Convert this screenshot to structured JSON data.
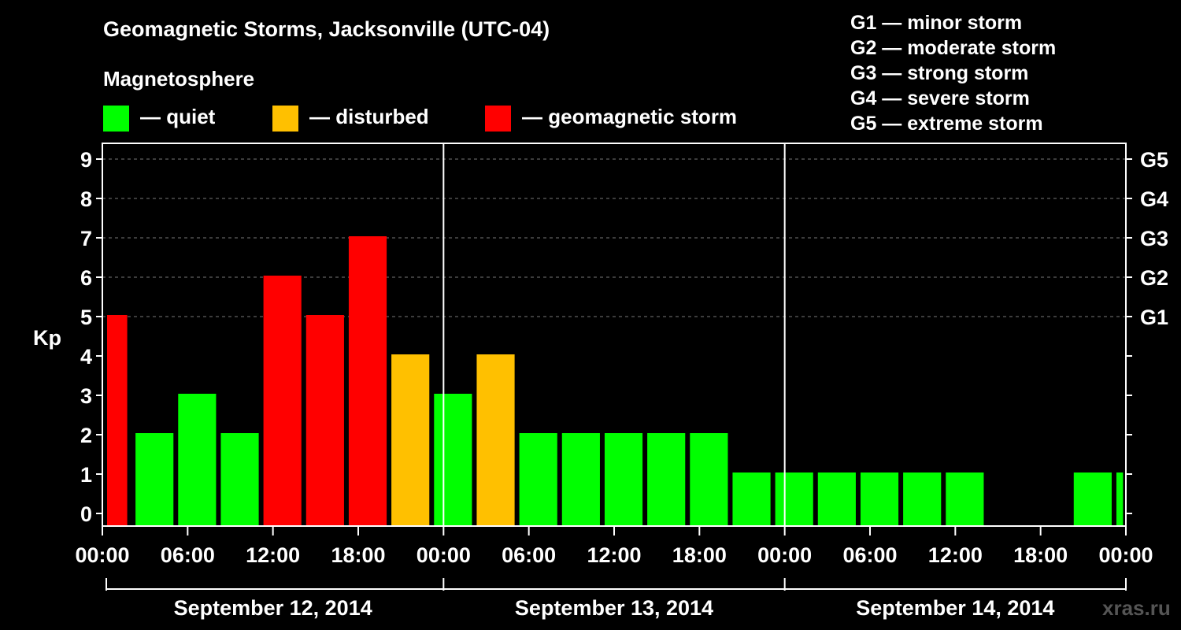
{
  "title": "Geomagnetic Storms, Jacksonville (UTC-04)",
  "magnetosphere": {
    "title": "Magnetosphere",
    "legend": [
      {
        "label": "— quiet",
        "color": "#00ff00"
      },
      {
        "label": "— disturbed",
        "color": "#ffc000"
      },
      {
        "label": "— geomagnetic storm",
        "color": "#ff0000"
      }
    ]
  },
  "g_legend": [
    "G1 — minor storm",
    "G2 — moderate storm",
    "G3 — strong storm",
    "G4 — severe storm",
    "G5 — extreme storm"
  ],
  "watermark": "xras.ru",
  "chart_data": {
    "type": "bar",
    "ylabel": "Kp",
    "ylim": [
      0,
      9
    ],
    "yticks": [
      "0",
      "1",
      "2",
      "3",
      "4",
      "5",
      "6",
      "7",
      "8",
      "9"
    ],
    "right_ticks": [
      {
        "kp": 5,
        "label": "G1"
      },
      {
        "kp": 6,
        "label": "G2"
      },
      {
        "kp": 7,
        "label": "G3"
      },
      {
        "kp": 8,
        "label": "G4"
      },
      {
        "kp": 9,
        "label": "G5"
      }
    ],
    "x_tick_labels": [
      "00:00",
      "06:00",
      "12:00",
      "18:00",
      "00:00",
      "06:00",
      "12:00",
      "18:00",
      "00:00",
      "06:00",
      "12:00",
      "18:00",
      "00:00"
    ],
    "days": [
      "September 12, 2014",
      "September 13, 2014",
      "September 14, 2014"
    ],
    "thresholds": {
      "disturbed": 4,
      "storm": 5
    },
    "x_range_hours": [
      0,
      72
    ],
    "bars": [
      {
        "start_h": 0,
        "end_h": 1.75,
        "kp": 5
      },
      {
        "start_h": 2,
        "end_h": 5,
        "kp": 2
      },
      {
        "start_h": 5,
        "end_h": 8,
        "kp": 3
      },
      {
        "start_h": 8,
        "end_h": 11,
        "kp": 2
      },
      {
        "start_h": 11,
        "end_h": 14,
        "kp": 6
      },
      {
        "start_h": 14,
        "end_h": 17,
        "kp": 5
      },
      {
        "start_h": 17,
        "end_h": 20,
        "kp": 7
      },
      {
        "start_h": 20,
        "end_h": 23,
        "kp": 4
      },
      {
        "start_h": 23,
        "end_h": 26,
        "kp": 3
      },
      {
        "start_h": 26,
        "end_h": 29,
        "kp": 4
      },
      {
        "start_h": 29,
        "end_h": 32,
        "kp": 2
      },
      {
        "start_h": 32,
        "end_h": 35,
        "kp": 2
      },
      {
        "start_h": 35,
        "end_h": 38,
        "kp": 2
      },
      {
        "start_h": 38,
        "end_h": 41,
        "kp": 2
      },
      {
        "start_h": 41,
        "end_h": 44,
        "kp": 2
      },
      {
        "start_h": 44,
        "end_h": 47,
        "kp": 1
      },
      {
        "start_h": 47,
        "end_h": 50,
        "kp": 1
      },
      {
        "start_h": 50,
        "end_h": 53,
        "kp": 1
      },
      {
        "start_h": 53,
        "end_h": 56,
        "kp": 1
      },
      {
        "start_h": 56,
        "end_h": 59,
        "kp": 1
      },
      {
        "start_h": 59,
        "end_h": 62,
        "kp": 1
      },
      {
        "start_h": 68,
        "end_h": 71,
        "kp": 1
      },
      {
        "start_h": 71,
        "end_h": 71.8,
        "kp": 1
      }
    ]
  }
}
